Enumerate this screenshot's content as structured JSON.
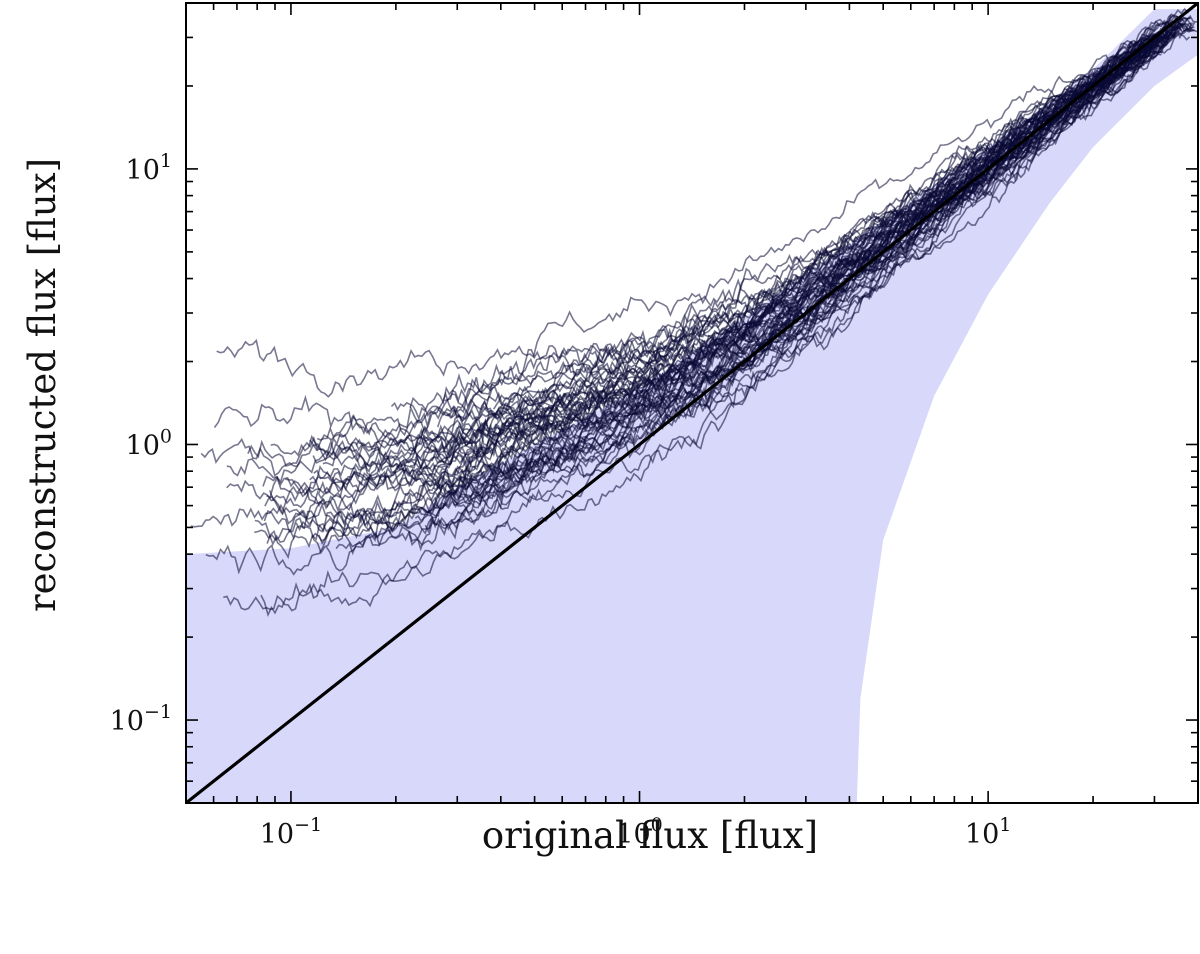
{
  "chart_data": {
    "type": "line",
    "xlabel": "original flux [flux]",
    "ylabel": "reconstructed flux [flux]",
    "x_scale": "log",
    "y_scale": "log",
    "xlim": [
      0.05,
      40
    ],
    "ylim": [
      0.05,
      40
    ],
    "grid": false,
    "x_ticks": [
      {
        "value": 0.1,
        "base": "10",
        "exp": "−1"
      },
      {
        "value": 1,
        "base": "10",
        "exp": "0"
      },
      {
        "value": 10,
        "base": "10",
        "exp": "1"
      }
    ],
    "y_ticks": [
      {
        "value": 0.1,
        "base": "10",
        "exp": "−1"
      },
      {
        "value": 1,
        "base": "10",
        "exp": "0"
      },
      {
        "value": 10,
        "base": "10",
        "exp": "1"
      }
    ],
    "series": [
      {
        "kind": "band",
        "color": "#d8d8fb",
        "upper": [
          [
            0.05,
            0.4
          ],
          [
            0.1,
            0.42
          ],
          [
            0.2,
            0.5
          ],
          [
            0.3,
            0.7
          ],
          [
            0.5,
            1.0
          ],
          [
            1,
            1.6
          ],
          [
            2,
            2.9
          ],
          [
            5,
            6.5
          ],
          [
            10,
            12
          ],
          [
            20,
            23
          ],
          [
            30,
            38
          ],
          [
            40,
            38
          ]
        ],
        "lower": [
          [
            0.05,
            0.05
          ],
          [
            4.2,
            0.05
          ],
          [
            4.3,
            0.12
          ],
          [
            5,
            0.45
          ],
          [
            7,
            1.5
          ],
          [
            10,
            3.5
          ],
          [
            15,
            7.5
          ],
          [
            20,
            12
          ],
          [
            30,
            20
          ],
          [
            40,
            26
          ]
        ]
      },
      {
        "kind": "reference",
        "color": "#000000",
        "points": [
          [
            0.05,
            0.05
          ],
          [
            40,
            40
          ]
        ]
      },
      {
        "kind": "trajectories",
        "color": "#0a0a35",
        "count": 60,
        "median": [
          [
            0.05,
            0.7
          ],
          [
            0.1,
            0.72
          ],
          [
            0.2,
            0.78
          ],
          [
            0.3,
            0.9
          ],
          [
            0.5,
            1.15
          ],
          [
            1,
            1.6
          ],
          [
            2,
            2.5
          ],
          [
            3,
            3.4
          ],
          [
            5,
            5.5
          ],
          [
            10,
            10.5
          ],
          [
            20,
            20
          ],
          [
            35,
            34
          ]
        ],
        "spread_start": 0.33,
        "spread_end": 0.02
      }
    ],
    "colors": {
      "band": "#d8d8fb",
      "trajectories": "#0a0a35",
      "reference": "#000000",
      "axes": "#000000"
    }
  }
}
